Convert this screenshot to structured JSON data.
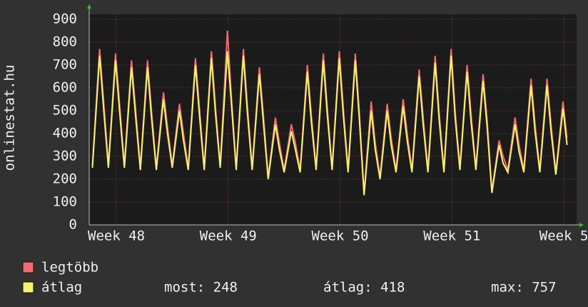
{
  "chart_data": {
    "type": "line",
    "ylabel": "onlinestat.hu",
    "x": [
      0.2,
      0.65,
      0.9,
      1.2,
      1.65,
      1.9,
      2.2,
      2.65,
      2.9,
      3.2,
      3.65,
      3.9,
      4.2,
      4.65,
      4.9,
      5.2,
      5.65,
      5.9,
      6.2,
      6.65,
      6.9,
      7.2,
      7.65,
      7.9,
      8.2,
      8.65,
      8.9,
      9.2,
      9.65,
      9.9,
      10.2,
      10.65,
      10.9,
      11.2,
      11.65,
      11.9,
      12.2,
      12.65,
      12.9,
      13.2,
      13.65,
      13.9,
      14.2,
      14.65,
      14.9,
      15.2,
      15.65,
      15.9,
      16.2,
      16.65,
      16.9,
      17.2,
      17.65,
      17.9,
      18.2,
      18.65,
      18.9,
      19.2,
      19.65,
      19.9,
      20.2,
      20.65,
      20.9,
      21.2,
      21.65,
      21.9,
      22.2,
      22.65,
      22.9,
      23.2,
      23.65,
      23.9,
      24.2,
      24.65,
      24.9,
      25.2,
      25.65,
      25.9,
      26.2,
      26.65,
      26.9,
      27.2,
      27.65,
      27.9,
      28.2,
      28.65,
      28.9,
      29.2,
      29.65,
      29.9
    ],
    "series": [
      {
        "name": "legtöbb",
        "color": "#f36b72",
        "values": [
          260,
          770,
          540,
          260,
          750,
          530,
          260,
          720,
          510,
          250,
          720,
          500,
          250,
          580,
          430,
          260,
          530,
          400,
          250,
          730,
          510,
          250,
          760,
          520,
          260,
          850,
          560,
          250,
          770,
          520,
          250,
          690,
          480,
          210,
          470,
          360,
          240,
          440,
          360,
          240,
          700,
          480,
          250,
          750,
          510,
          250,
          760,
          510,
          240,
          750,
          500,
          140,
          540,
          360,
          210,
          530,
          380,
          240,
          550,
          400,
          240,
          680,
          470,
          240,
          740,
          490,
          240,
          770,
          500,
          250,
          700,
          480,
          250,
          660,
          460,
          150,
          370,
          300,
          240,
          470,
          350,
          240,
          640,
          440,
          240,
          640,
          440,
          230,
          540,
          380
        ]
      },
      {
        "name": "átlag",
        "color": "#f5f36b",
        "values": [
          250,
          740,
          510,
          250,
          720,
          500,
          250,
          690,
          480,
          240,
          690,
          470,
          240,
          550,
          400,
          250,
          500,
          370,
          240,
          700,
          480,
          240,
          730,
          490,
          250,
          760,
          530,
          240,
          740,
          490,
          240,
          660,
          450,
          200,
          440,
          330,
          230,
          410,
          330,
          230,
          670,
          450,
          240,
          720,
          480,
          240,
          730,
          480,
          230,
          720,
          470,
          130,
          500,
          330,
          200,
          500,
          350,
          230,
          520,
          370,
          230,
          650,
          440,
          230,
          710,
          460,
          230,
          740,
          470,
          240,
          670,
          450,
          240,
          630,
          430,
          140,
          350,
          270,
          230,
          440,
          320,
          230,
          610,
          410,
          230,
          610,
          410,
          220,
          510,
          350
        ]
      }
    ],
    "xlim": [
      0,
      30.5
    ],
    "xticks": [
      {
        "value": 1.7,
        "label": "Week 48"
      },
      {
        "value": 8.7,
        "label": "Week 49"
      },
      {
        "value": 15.7,
        "label": "Week 50"
      },
      {
        "value": 22.7,
        "label": "Week 51"
      },
      {
        "value": 29.7,
        "label": "Week 5"
      }
    ],
    "ylim": [
      0,
      900
    ],
    "yticks": [
      0,
      100,
      200,
      300,
      400,
      500,
      600,
      700,
      800,
      900
    ],
    "grid": true,
    "stats": [
      "most: 248",
      "átlag: 418",
      "max: 757"
    ]
  }
}
